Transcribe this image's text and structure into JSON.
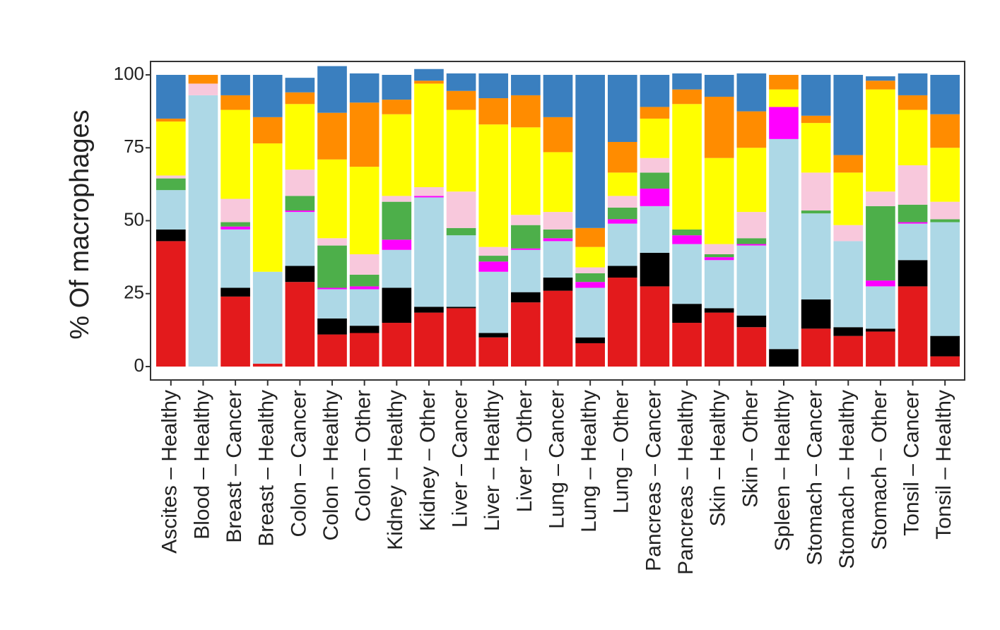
{
  "chart_data": {
    "type": "bar",
    "stacked": true,
    "title": "",
    "xlabel": "",
    "ylabel": "% Of macrophages",
    "ylim": [
      0,
      100
    ],
    "yticks": [
      0,
      25,
      50,
      75,
      100
    ],
    "grid": false,
    "legend": "none",
    "categories": [
      "Ascites – Healthy",
      "Blood – Healthy",
      "Breast – Cancer",
      "Breast – Healthy",
      "Colon – Cancer",
      "Colon – Healthy",
      "Colon – Other",
      "Kidney – Healthy",
      "Kidney – Other",
      "Liver – Cancer",
      "Liver – Healthy",
      "Liver – Other",
      "Lung – Cancer",
      "Lung – Healthy",
      "Lung – Other",
      "Pancreas – Cancer",
      "Pancreas – Healthy",
      "Skin – Healthy",
      "Skin – Other",
      "Spleen – Healthy",
      "Stomach – Cancer",
      "Stomach – Healthy",
      "Stomach – Other",
      "Tonsil – Cancer",
      "Tonsil – Healthy"
    ],
    "series": [
      {
        "name": "red",
        "color": "#e31a1c",
        "values": [
          43,
          0,
          24,
          1,
          29,
          11,
          11.5,
          15,
          18.5,
          20,
          10,
          22,
          26,
          8,
          30.5,
          27.5,
          15,
          18.5,
          13.5,
          0,
          13,
          10.5,
          12,
          27.5,
          3.5
        ]
      },
      {
        "name": "black",
        "color": "#000000",
        "values": [
          4,
          0,
          3,
          0,
          5.5,
          5.5,
          2.5,
          12,
          2,
          0.5,
          1.5,
          3.5,
          4.5,
          2,
          4,
          11.5,
          6.5,
          1.5,
          4,
          6,
          10,
          3,
          1,
          9,
          7
        ]
      },
      {
        "name": "light-blue",
        "color": "#add8e6",
        "values": [
          13.5,
          93,
          20,
          31.5,
          18.5,
          10,
          12.5,
          13,
          37.5,
          24.5,
          21,
          14.5,
          12.5,
          17,
          14.5,
          16,
          20.5,
          16.5,
          24,
          72,
          29.5,
          29.5,
          14.5,
          12.5,
          39
        ]
      },
      {
        "name": "magenta",
        "color": "#ff00ff",
        "values": [
          0,
          0,
          1,
          0,
          0.5,
          0.5,
          1,
          3.5,
          0.5,
          0,
          3.5,
          0.5,
          1,
          2,
          1.5,
          6,
          3,
          1,
          0.5,
          11,
          0,
          0,
          2,
          0.5,
          0
        ]
      },
      {
        "name": "green",
        "color": "#4daf4a",
        "values": [
          4,
          0,
          1.5,
          0,
          5,
          14.5,
          4,
          13,
          0,
          2.5,
          2,
          8,
          3,
          3,
          4,
          5.5,
          2,
          1,
          2,
          0,
          1,
          0,
          25.5,
          6,
          1
        ]
      },
      {
        "name": "pink",
        "color": "#f8c8dc",
        "values": [
          1,
          4,
          8,
          0,
          9,
          2.5,
          7,
          2,
          3,
          12.5,
          3,
          3.5,
          6,
          2,
          4,
          5,
          0,
          3.5,
          9,
          0,
          13,
          5.5,
          5,
          13.5,
          6
        ]
      },
      {
        "name": "yellow",
        "color": "#ffff00",
        "values": [
          18.5,
          0,
          30.5,
          44,
          22.5,
          27,
          30,
          28,
          35.5,
          28,
          42,
          30,
          20.5,
          7,
          8,
          13.5,
          43,
          29.5,
          22,
          6,
          17,
          18,
          35,
          19,
          18.5
        ]
      },
      {
        "name": "orange",
        "color": "#ff8c00",
        "values": [
          1,
          3,
          5,
          9,
          4,
          16,
          22,
          5,
          1,
          6.5,
          9,
          11,
          12,
          6.5,
          10.5,
          4,
          5,
          21,
          12.5,
          5,
          2.5,
          6,
          3,
          5,
          11.5
        ]
      },
      {
        "name": "blue",
        "color": "#3a7fbf",
        "values": [
          15,
          0,
          7,
          14.5,
          5,
          16,
          10,
          8.5,
          4,
          6,
          8.5,
          7,
          14.5,
          52.5,
          23,
          11,
          5.5,
          7.5,
          13,
          0,
          14,
          27.5,
          1.5,
          7.5,
          13.5
        ]
      }
    ]
  }
}
